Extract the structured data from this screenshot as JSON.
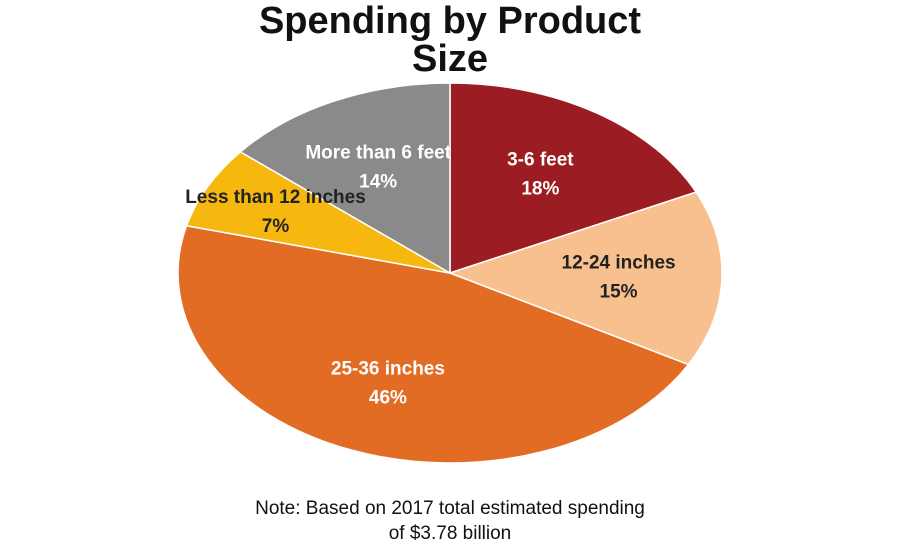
{
  "chart_data": {
    "type": "pie",
    "title": "Spending by Product Size",
    "note": "Note: Based on 2017 total estimated spending of $3.78 billion",
    "categories": [
      "3-6 feet",
      "12-24 inches",
      "25-36 inches",
      "Less than 12 inches",
      "More than 6 feet"
    ],
    "values": [
      18,
      15,
      46,
      7,
      14
    ],
    "value_labels": [
      "18%",
      "15%",
      "46%",
      "7%",
      "14%"
    ],
    "colors": [
      "#9b1c22",
      "#f9c08f",
      "#e36c25",
      "#f6b70f",
      "#8a8a8a"
    ]
  }
}
